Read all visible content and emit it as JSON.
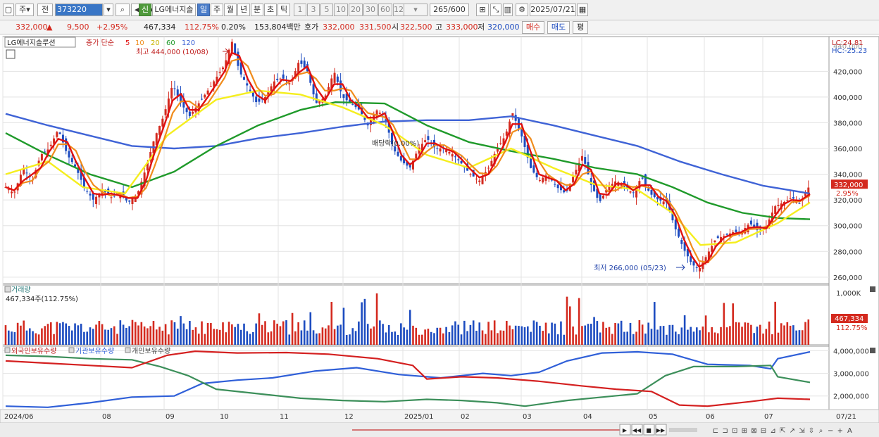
{
  "toolbar": {
    "period_type": "주",
    "prev": "전",
    "code": "373220",
    "name": "LG에너지솔",
    "shin": "신",
    "periods": [
      "일",
      "주",
      "월",
      "년",
      "분",
      "초",
      "틱"
    ],
    "minutes": [
      "1",
      "3",
      "5",
      "10",
      "20",
      "30",
      "60",
      "120"
    ],
    "count": "265",
    "count_total": "/600",
    "date": "2025/07/21"
  },
  "info": {
    "price": "332,000",
    "arrow": "▲",
    "change": "9,500",
    "change_pct": "+2.95%",
    "volume": "467,334",
    "vol_ratio": "112.75%",
    "turnover": "0.20%",
    "amount": "153,804백만",
    "quote_label": "호가",
    "ask": "332,000",
    "bid": "331,500",
    "open_label": "시",
    "open": "322,500",
    "high_label": "고",
    "high": "333,000",
    "low_label": "저",
    "low": "320,000",
    "buy": "매수",
    "sell": "매도",
    "eval": "평"
  },
  "price_panel": {
    "title": "LG에너지솔루션",
    "ma_label": "종가 단순",
    "ma": [
      "5",
      "10",
      "20",
      "60",
      "120"
    ],
    "high_note": "최고 444,000 (10/08)",
    "low_note": "최저 266,000 (05/23)",
    "div_note": "배당락(0.00%)",
    "lc": "LC:24.81",
    "hc": "HC:-25.23",
    "y_ticks": [
      "420,000",
      "400,000",
      "380,000",
      "360,000",
      "340,000",
      "320,000",
      "300,000",
      "280,000",
      "260,000"
    ],
    "y_partial": "440,000",
    "last_price": "332,000",
    "last_pct": "2.95%"
  },
  "volume_panel": {
    "title": "거래량",
    "info": "467,334주(112.75%)",
    "y_tick": "1,000K",
    "last_value": "467,334",
    "last_pct": "112.75%"
  },
  "holding_panel": {
    "series": [
      "외국인보유수량",
      "기관보유수량",
      "개인보유수량"
    ],
    "y_ticks": [
      "4,000,000",
      "3,000,000",
      "2,000,000"
    ]
  },
  "x_axis": [
    "2024/06",
    "08",
    "09",
    "10",
    "11",
    "12",
    "2025/01",
    "02",
    "03",
    "04",
    "05",
    "06",
    "07"
  ],
  "x_axis_right": "07/21",
  "colors": {
    "up": "#d42a1f",
    "down": "#1d4cc0",
    "ma5": "#e01010",
    "ma10": "#f08c1c",
    "ma20": "#f5ee1e",
    "ma60": "#1f9a2a",
    "ma120": "#3f63d6",
    "foreign": "#d42020",
    "inst": "#3c8f5a",
    "indiv": "#2f5fd8"
  },
  "chart_data": {
    "type": "candlestick",
    "ylim": [
      255000,
      447000
    ],
    "points": [
      [
        0,
        330000
      ],
      [
        12,
        325000
      ],
      [
        25,
        345000
      ],
      [
        38,
        335000
      ],
      [
        50,
        355000
      ],
      [
        62,
        360000
      ],
      [
        75,
        375000
      ],
      [
        88,
        355000
      ],
      [
        100,
        345000
      ],
      [
        112,
        330000
      ],
      [
        125,
        320000
      ],
      [
        138,
        328000
      ],
      [
        150,
        322000
      ],
      [
        162,
        325000
      ],
      [
        175,
        318000
      ],
      [
        188,
        325000
      ],
      [
        200,
        345000
      ],
      [
        212,
        368000
      ],
      [
        225,
        385000
      ],
      [
        238,
        410000
      ],
      [
        250,
        395000
      ],
      [
        262,
        385000
      ],
      [
        275,
        395000
      ],
      [
        288,
        405000
      ],
      [
        300,
        415000
      ],
      [
        312,
        425000
      ],
      [
        322,
        444000
      ],
      [
        333,
        420000
      ],
      [
        345,
        408000
      ],
      [
        358,
        395000
      ],
      [
        370,
        400000
      ],
      [
        382,
        412000
      ],
      [
        394,
        415000
      ],
      [
        406,
        410000
      ],
      [
        418,
        428000
      ],
      [
        430,
        420000
      ],
      [
        442,
        395000
      ],
      [
        455,
        400000
      ],
      [
        468,
        420000
      ],
      [
        480,
        400000
      ],
      [
        492,
        395000
      ],
      [
        504,
        390000
      ],
      [
        516,
        378000
      ],
      [
        528,
        390000
      ],
      [
        540,
        385000
      ],
      [
        552,
        360000
      ],
      [
        564,
        350000
      ],
      [
        576,
        345000
      ],
      [
        588,
        360000
      ],
      [
        600,
        368000
      ],
      [
        612,
        360000
      ],
      [
        625,
        360000
      ],
      [
        638,
        355000
      ],
      [
        650,
        348000
      ],
      [
        662,
        340000
      ],
      [
        675,
        335000
      ],
      [
        688,
        345000
      ],
      [
        700,
        360000
      ],
      [
        712,
        370000
      ],
      [
        722,
        388000
      ],
      [
        735,
        370000
      ],
      [
        748,
        345000
      ],
      [
        760,
        335000
      ],
      [
        772,
        340000
      ],
      [
        785,
        330000
      ],
      [
        798,
        325000
      ],
      [
        810,
        340000
      ],
      [
        822,
        355000
      ],
      [
        834,
        332000
      ],
      [
        846,
        318000
      ],
      [
        858,
        330000
      ],
      [
        870,
        335000
      ],
      [
        882,
        330000
      ],
      [
        894,
        325000
      ],
      [
        906,
        338000
      ],
      [
        918,
        325000
      ],
      [
        930,
        320000
      ],
      [
        942,
        318000
      ],
      [
        954,
        298000
      ],
      [
        966,
        282000
      ],
      [
        978,
        270000
      ],
      [
        988,
        266000
      ],
      [
        1000,
        278000
      ],
      [
        1012,
        290000
      ],
      [
        1024,
        292000
      ],
      [
        1036,
        295000
      ],
      [
        1048,
        295000
      ],
      [
        1060,
        302000
      ],
      [
        1072,
        296000
      ],
      [
        1084,
        300000
      ],
      [
        1096,
        315000
      ],
      [
        1108,
        318000
      ],
      [
        1120,
        322000
      ],
      [
        1132,
        317000
      ],
      [
        1146,
        332000
      ]
    ],
    "ma20": [
      [
        0,
        340000
      ],
      [
        60,
        350000
      ],
      [
        110,
        330000
      ],
      [
        170,
        325000
      ],
      [
        230,
        370000
      ],
      [
        300,
        398000
      ],
      [
        360,
        405000
      ],
      [
        420,
        402000
      ],
      [
        480,
        392000
      ],
      [
        540,
        378000
      ],
      [
        600,
        355000
      ],
      [
        660,
        345000
      ],
      [
        720,
        360000
      ],
      [
        780,
        345000
      ],
      [
        840,
        332000
      ],
      [
        900,
        328000
      ],
      [
        950,
        310000
      ],
      [
        990,
        285000
      ],
      [
        1040,
        287000
      ],
      [
        1100,
        302000
      ],
      [
        1146,
        318000
      ]
    ],
    "ma60": [
      [
        0,
        372000
      ],
      [
        60,
        355000
      ],
      [
        120,
        340000
      ],
      [
        180,
        330000
      ],
      [
        240,
        342000
      ],
      [
        300,
        362000
      ],
      [
        360,
        378000
      ],
      [
        420,
        390000
      ],
      [
        470,
        396000
      ],
      [
        540,
        395000
      ],
      [
        600,
        378000
      ],
      [
        660,
        365000
      ],
      [
        720,
        358000
      ],
      [
        780,
        352000
      ],
      [
        840,
        345000
      ],
      [
        900,
        340000
      ],
      [
        950,
        330000
      ],
      [
        1000,
        318000
      ],
      [
        1050,
        310000
      ],
      [
        1100,
        306000
      ],
      [
        1146,
        305000
      ]
    ],
    "ma120": [
      [
        0,
        387000
      ],
      [
        60,
        378000
      ],
      [
        120,
        370000
      ],
      [
        180,
        362000
      ],
      [
        240,
        360000
      ],
      [
        300,
        362000
      ],
      [
        360,
        368000
      ],
      [
        420,
        372000
      ],
      [
        480,
        377000
      ],
      [
        540,
        381000
      ],
      [
        600,
        382000
      ],
      [
        660,
        382000
      ],
      [
        720,
        385000
      ],
      [
        780,
        378000
      ],
      [
        840,
        370000
      ],
      [
        900,
        362000
      ],
      [
        960,
        350000
      ],
      [
        1020,
        340000
      ],
      [
        1080,
        331000
      ],
      [
        1146,
        325000
      ]
    ],
    "foreign": [
      [
        0,
        3550000
      ],
      [
        60,
        3450000
      ],
      [
        120,
        3350000
      ],
      [
        180,
        3250000
      ],
      [
        230,
        3800000
      ],
      [
        270,
        3980000
      ],
      [
        330,
        3900000
      ],
      [
        400,
        3920000
      ],
      [
        460,
        3850000
      ],
      [
        530,
        3650000
      ],
      [
        580,
        3350000
      ],
      [
        600,
        2750000
      ],
      [
        650,
        2850000
      ],
      [
        700,
        2800000
      ],
      [
        760,
        2650000
      ],
      [
        820,
        2450000
      ],
      [
        870,
        2300000
      ],
      [
        920,
        2200000
      ],
      [
        960,
        1600000
      ],
      [
        1000,
        1550000
      ],
      [
        1060,
        1750000
      ],
      [
        1100,
        1900000
      ],
      [
        1146,
        1850000
      ]
    ],
    "inst": [
      [
        0,
        3800000
      ],
      [
        60,
        3750000
      ],
      [
        120,
        3650000
      ],
      [
        180,
        3600000
      ],
      [
        220,
        3300000
      ],
      [
        260,
        2900000
      ],
      [
        300,
        2300000
      ],
      [
        360,
        2100000
      ],
      [
        420,
        1900000
      ],
      [
        480,
        1800000
      ],
      [
        540,
        1750000
      ],
      [
        600,
        1850000
      ],
      [
        650,
        1800000
      ],
      [
        700,
        1700000
      ],
      [
        740,
        1550000
      ],
      [
        800,
        1800000
      ],
      [
        850,
        1950000
      ],
      [
        900,
        2100000
      ],
      [
        940,
        2900000
      ],
      [
        980,
        3300000
      ],
      [
        1040,
        3300000
      ],
      [
        1090,
        3350000
      ],
      [
        1100,
        2850000
      ],
      [
        1146,
        2600000
      ]
    ],
    "indiv": [
      [
        0,
        1550000
      ],
      [
        60,
        1500000
      ],
      [
        120,
        1700000
      ],
      [
        180,
        1950000
      ],
      [
        240,
        2000000
      ],
      [
        280,
        2550000
      ],
      [
        330,
        2700000
      ],
      [
        380,
        2800000
      ],
      [
        440,
        3100000
      ],
      [
        500,
        3250000
      ],
      [
        560,
        2950000
      ],
      [
        620,
        2800000
      ],
      [
        680,
        3000000
      ],
      [
        720,
        2900000
      ],
      [
        760,
        3050000
      ],
      [
        800,
        3550000
      ],
      [
        850,
        3900000
      ],
      [
        900,
        3950000
      ],
      [
        950,
        3850000
      ],
      [
        1000,
        3400000
      ],
      [
        1060,
        3350000
      ],
      [
        1090,
        3200000
      ],
      [
        1100,
        3650000
      ],
      [
        1146,
        3950000
      ]
    ],
    "hold_ylim": [
      1400000,
      4200000
    ],
    "vol_ylim": [
      0,
      1050000
    ],
    "volume_last": 467334
  }
}
